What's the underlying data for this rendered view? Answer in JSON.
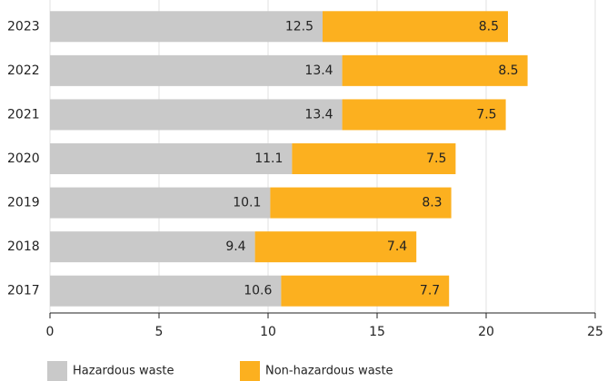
{
  "chart_data": {
    "type": "bar",
    "orientation": "horizontal",
    "stacked": true,
    "categories": [
      "2023",
      "2022",
      "2021",
      "2020",
      "2019",
      "2018",
      "2017"
    ],
    "series": [
      {
        "name": "Hazardous waste",
        "color": "#c9c9c9",
        "values": [
          12.5,
          13.4,
          13.4,
          11.1,
          10.1,
          9.4,
          10.6
        ]
      },
      {
        "name": "Non-hazardous waste",
        "color": "#fcb01f",
        "values": [
          8.5,
          8.5,
          7.5,
          7.5,
          8.3,
          7.4,
          7.7
        ]
      }
    ],
    "xlim": [
      0,
      25
    ],
    "xticks": [
      0,
      5,
      10,
      15,
      20,
      25
    ],
    "grid": true,
    "legend": "bottom",
    "data_labels": true
  }
}
